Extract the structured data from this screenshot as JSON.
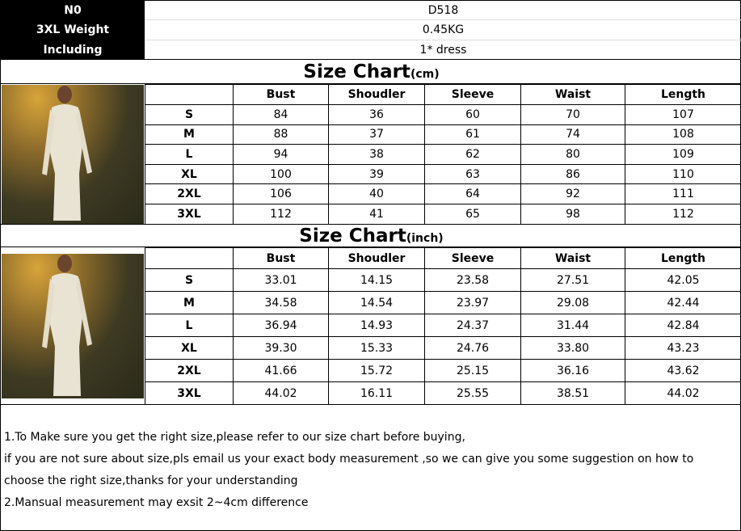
{
  "info": {
    "labels": [
      "N0",
      "3XL Weight",
      "Including"
    ],
    "values": [
      "D518",
      "0.45KG",
      "1* dress"
    ]
  },
  "cm": {
    "title": "Size Chart",
    "unit": "(cm)",
    "headers": [
      "",
      "Bust",
      "Shoudler",
      "Sleeve",
      "Waist",
      "Length"
    ],
    "rows": [
      [
        "S",
        "84",
        "36",
        "60",
        "70",
        "107"
      ],
      [
        "M",
        "88",
        "37",
        "61",
        "74",
        "108"
      ],
      [
        "L",
        "94",
        "38",
        "62",
        "80",
        "109"
      ],
      [
        "XL",
        "100",
        "39",
        "63",
        "86",
        "110"
      ],
      [
        "2XL",
        "106",
        "40",
        "64",
        "92",
        "111"
      ],
      [
        "3XL",
        "112",
        "41",
        "65",
        "98",
        "112"
      ]
    ]
  },
  "inch": {
    "title": "Size Chart",
    "unit": "(inch)",
    "headers": [
      "",
      "Bust",
      "Shoudler",
      "Sleeve",
      "Waist",
      "Length"
    ],
    "rows": [
      [
        "S",
        "33.01",
        "14.15",
        "23.58",
        "27.51",
        "42.05"
      ],
      [
        "M",
        "34.58",
        "14.54",
        "23.97",
        "29.08",
        "42.44"
      ],
      [
        "L",
        "36.94",
        "14.93",
        "24.37",
        "31.44",
        "42.84"
      ],
      [
        "XL",
        "39.30",
        "15.33",
        "24.76",
        "33.80",
        "43.23"
      ],
      [
        "2XL",
        "41.66",
        "15.72",
        "25.15",
        "36.16",
        "43.62"
      ],
      [
        "3XL",
        "44.02",
        "16.11",
        "25.55",
        "38.51",
        "44.02"
      ]
    ]
  },
  "notes": [
    "1.To Make sure you get the right size,please refer to our size chart before buying,",
    "if you are not sure about size,pls email us your exact body measurement ,so we can give you some suggestion on how to",
    "choose the right size,thanks for your understanding",
    "2.Mansual measurement may exsit 2~4cm difference"
  ]
}
